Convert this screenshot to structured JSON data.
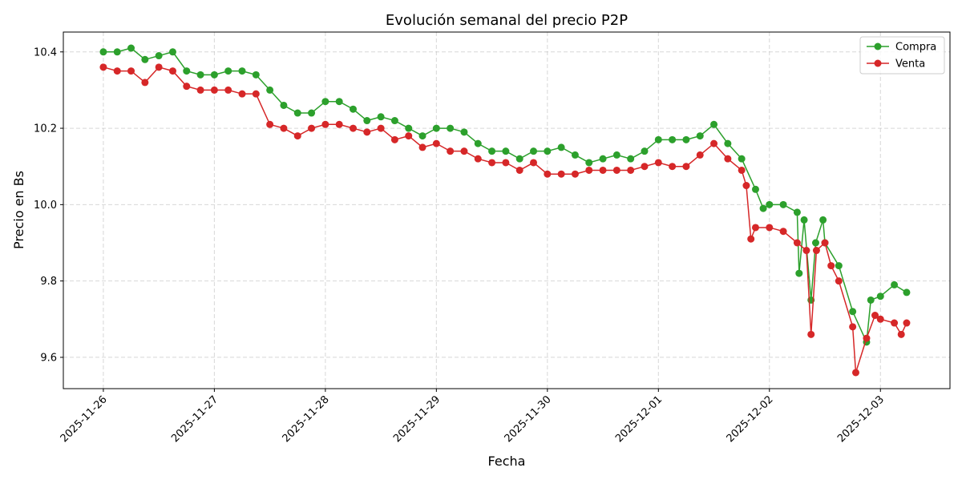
{
  "chart_data": {
    "type": "line",
    "title": "Evolución semanal del precio P2P",
    "xlabel": "Fecha",
    "ylabel": "Precio en Bs",
    "xlim": [
      "2025-11-25T15:21",
      "2025-12-03T15:02"
    ],
    "ylim": [
      9.518,
      10.452
    ],
    "x_ticks": [
      "2025-11-26",
      "2025-11-27",
      "2025-11-28",
      "2025-11-29",
      "2025-11-30",
      "2025-12-01",
      "2025-12-02",
      "2025-12-03"
    ],
    "y_ticks": [
      9.6,
      9.8,
      10.0,
      10.2,
      10.4
    ],
    "y_tick_labels": [
      "9.6",
      "9.8",
      "10.0",
      "10.2",
      "10.4"
    ],
    "grid": true,
    "legend_position": "top-right",
    "series": [
      {
        "name": "Compra",
        "color": "#2ca02c",
        "points": [
          [
            "2025-11-26T00:00",
            10.4
          ],
          [
            "2025-11-26T03:00",
            10.4
          ],
          [
            "2025-11-26T06:00",
            10.41
          ],
          [
            "2025-11-26T09:00",
            10.38
          ],
          [
            "2025-11-26T12:00",
            10.39
          ],
          [
            "2025-11-26T15:00",
            10.4
          ],
          [
            "2025-11-26T18:00",
            10.35
          ],
          [
            "2025-11-26T21:00",
            10.34
          ],
          [
            "2025-11-27T00:00",
            10.34
          ],
          [
            "2025-11-27T03:00",
            10.35
          ],
          [
            "2025-11-27T06:00",
            10.35
          ],
          [
            "2025-11-27T09:00",
            10.34
          ],
          [
            "2025-11-27T12:00",
            10.3
          ],
          [
            "2025-11-27T15:00",
            10.26
          ],
          [
            "2025-11-27T18:00",
            10.24
          ],
          [
            "2025-11-27T21:00",
            10.24
          ],
          [
            "2025-11-28T00:00",
            10.27
          ],
          [
            "2025-11-28T03:00",
            10.27
          ],
          [
            "2025-11-28T06:00",
            10.25
          ],
          [
            "2025-11-28T09:00",
            10.22
          ],
          [
            "2025-11-28T12:00",
            10.23
          ],
          [
            "2025-11-28T15:00",
            10.22
          ],
          [
            "2025-11-28T18:00",
            10.2
          ],
          [
            "2025-11-28T21:00",
            10.18
          ],
          [
            "2025-11-29T00:00",
            10.2
          ],
          [
            "2025-11-29T03:00",
            10.2
          ],
          [
            "2025-11-29T06:00",
            10.19
          ],
          [
            "2025-11-29T09:00",
            10.16
          ],
          [
            "2025-11-29T12:00",
            10.14
          ],
          [
            "2025-11-29T15:00",
            10.14
          ],
          [
            "2025-11-29T18:00",
            10.12
          ],
          [
            "2025-11-29T21:00",
            10.14
          ],
          [
            "2025-11-30T00:00",
            10.14
          ],
          [
            "2025-11-30T03:00",
            10.15
          ],
          [
            "2025-11-30T06:00",
            10.13
          ],
          [
            "2025-11-30T09:00",
            10.11
          ],
          [
            "2025-11-30T12:00",
            10.12
          ],
          [
            "2025-11-30T15:00",
            10.13
          ],
          [
            "2025-11-30T18:00",
            10.12
          ],
          [
            "2025-11-30T21:00",
            10.14
          ],
          [
            "2025-12-01T00:00",
            10.17
          ],
          [
            "2025-12-01T03:00",
            10.17
          ],
          [
            "2025-12-01T06:00",
            10.17
          ],
          [
            "2025-12-01T09:00",
            10.18
          ],
          [
            "2025-12-01T12:00",
            10.21
          ],
          [
            "2025-12-01T15:00",
            10.16
          ],
          [
            "2025-12-01T18:00",
            10.12
          ],
          [
            "2025-12-01T21:00",
            10.04
          ],
          [
            "2025-12-01T22:40",
            9.99
          ],
          [
            "2025-12-02T00:00",
            10.0
          ],
          [
            "2025-12-02T03:00",
            10.0
          ],
          [
            "2025-12-02T06:00",
            9.98
          ],
          [
            "2025-12-02T06:25",
            9.82
          ],
          [
            "2025-12-02T07:30",
            9.96
          ],
          [
            "2025-12-02T09:00",
            9.75
          ],
          [
            "2025-12-02T10:00",
            9.9
          ],
          [
            "2025-12-02T11:35",
            9.96
          ],
          [
            "2025-12-02T12:00",
            9.9
          ],
          [
            "2025-12-02T15:00",
            9.84
          ],
          [
            "2025-12-02T18:00",
            9.72
          ],
          [
            "2025-12-02T21:00",
            9.64
          ],
          [
            "2025-12-02T21:55",
            9.75
          ],
          [
            "2025-12-03T00:00",
            9.76
          ],
          [
            "2025-12-03T03:00",
            9.79
          ],
          [
            "2025-12-03T05:40",
            9.77
          ]
        ]
      },
      {
        "name": "Venta",
        "color": "#d62728",
        "points": [
          [
            "2025-11-26T00:00",
            10.36
          ],
          [
            "2025-11-26T03:00",
            10.35
          ],
          [
            "2025-11-26T06:00",
            10.35
          ],
          [
            "2025-11-26T09:00",
            10.32
          ],
          [
            "2025-11-26T12:00",
            10.36
          ],
          [
            "2025-11-26T15:00",
            10.35
          ],
          [
            "2025-11-26T18:00",
            10.31
          ],
          [
            "2025-11-26T21:00",
            10.3
          ],
          [
            "2025-11-27T00:00",
            10.3
          ],
          [
            "2025-11-27T03:00",
            10.3
          ],
          [
            "2025-11-27T06:00",
            10.29
          ],
          [
            "2025-11-27T09:00",
            10.29
          ],
          [
            "2025-11-27T12:00",
            10.21
          ],
          [
            "2025-11-27T15:00",
            10.2
          ],
          [
            "2025-11-27T18:00",
            10.18
          ],
          [
            "2025-11-27T21:00",
            10.2
          ],
          [
            "2025-11-28T00:00",
            10.21
          ],
          [
            "2025-11-28T03:00",
            10.21
          ],
          [
            "2025-11-28T06:00",
            10.2
          ],
          [
            "2025-11-28T09:00",
            10.19
          ],
          [
            "2025-11-28T12:00",
            10.2
          ],
          [
            "2025-11-28T15:00",
            10.17
          ],
          [
            "2025-11-28T18:00",
            10.18
          ],
          [
            "2025-11-28T21:00",
            10.15
          ],
          [
            "2025-11-29T00:00",
            10.16
          ],
          [
            "2025-11-29T03:00",
            10.14
          ],
          [
            "2025-11-29T06:00",
            10.14
          ],
          [
            "2025-11-29T09:00",
            10.12
          ],
          [
            "2025-11-29T12:00",
            10.11
          ],
          [
            "2025-11-29T15:00",
            10.11
          ],
          [
            "2025-11-29T18:00",
            10.09
          ],
          [
            "2025-11-29T21:00",
            10.11
          ],
          [
            "2025-11-30T00:00",
            10.08
          ],
          [
            "2025-11-30T03:00",
            10.08
          ],
          [
            "2025-11-30T06:00",
            10.08
          ],
          [
            "2025-11-30T09:00",
            10.09
          ],
          [
            "2025-11-30T12:00",
            10.09
          ],
          [
            "2025-11-30T15:00",
            10.09
          ],
          [
            "2025-11-30T18:00",
            10.09
          ],
          [
            "2025-11-30T21:00",
            10.1
          ],
          [
            "2025-12-01T00:00",
            10.11
          ],
          [
            "2025-12-01T03:00",
            10.1
          ],
          [
            "2025-12-01T06:00",
            10.1
          ],
          [
            "2025-12-01T09:00",
            10.13
          ],
          [
            "2025-12-01T12:00",
            10.16
          ],
          [
            "2025-12-01T15:00",
            10.12
          ],
          [
            "2025-12-01T18:00",
            10.09
          ],
          [
            "2025-12-01T19:00",
            10.05
          ],
          [
            "2025-12-01T20:00",
            9.91
          ],
          [
            "2025-12-01T21:00",
            9.94
          ],
          [
            "2025-12-02T00:00",
            9.94
          ],
          [
            "2025-12-02T03:00",
            9.93
          ],
          [
            "2025-12-02T06:00",
            9.9
          ],
          [
            "2025-12-02T08:00",
            9.88
          ],
          [
            "2025-12-02T09:00",
            9.66
          ],
          [
            "2025-12-02T10:10",
            9.88
          ],
          [
            "2025-12-02T12:00",
            9.9
          ],
          [
            "2025-12-02T13:20",
            9.84
          ],
          [
            "2025-12-02T15:00",
            9.8
          ],
          [
            "2025-12-02T18:00",
            9.68
          ],
          [
            "2025-12-02T18:40",
            9.56
          ],
          [
            "2025-12-02T21:00",
            9.65
          ],
          [
            "2025-12-02T22:50",
            9.71
          ],
          [
            "2025-12-03T00:00",
            9.7
          ],
          [
            "2025-12-03T03:00",
            9.69
          ],
          [
            "2025-12-03T04:30",
            9.66
          ],
          [
            "2025-12-03T05:40",
            9.69
          ]
        ]
      }
    ]
  }
}
